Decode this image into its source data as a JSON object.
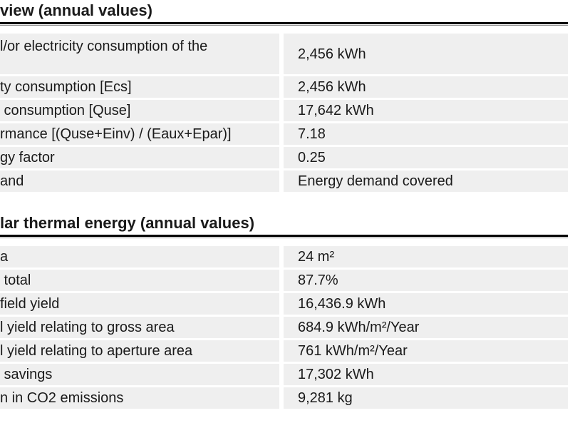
{
  "colors": {
    "background": "#ffffff",
    "row_background": "#efefef",
    "text": "#1a1a1a",
    "header_rule": "#000000",
    "header_rule_thin": "#8c8c8c"
  },
  "sections": [
    {
      "title": "view (annual values)",
      "rows": [
        {
          "label": "l/or electricity consumption of the",
          "value": "2,456 kWh"
        },
        {
          "label": "ty consumption [Ecs]",
          "value": "2,456 kWh"
        },
        {
          "label": " consumption [Quse]",
          "value": "17,642 kWh"
        },
        {
          "label": "rmance [(Quse+Einv) / (Eaux+Epar)]",
          "value": "7.18"
        },
        {
          "label": "gy factor",
          "value": "0.25"
        },
        {
          "label": "and",
          "value": "Energy demand covered"
        }
      ]
    },
    {
      "title": "lar thermal energy (annual values)",
      "rows": [
        {
          "label": "a",
          "value": "24 m²"
        },
        {
          "label": " total",
          "value": "87.7%"
        },
        {
          "label": "field yield",
          "value": "16,436.9 kWh"
        },
        {
          "label": "l yield relating to gross area",
          "value": "684.9 kWh/m²/Year"
        },
        {
          "label": "l yield relating to aperture area",
          "value": "761 kWh/m²/Year"
        },
        {
          "label": " savings",
          "value": "17,302 kWh"
        },
        {
          "label": "n in CO2 emissions",
          "value": "9,281 kg"
        }
      ]
    }
  ]
}
